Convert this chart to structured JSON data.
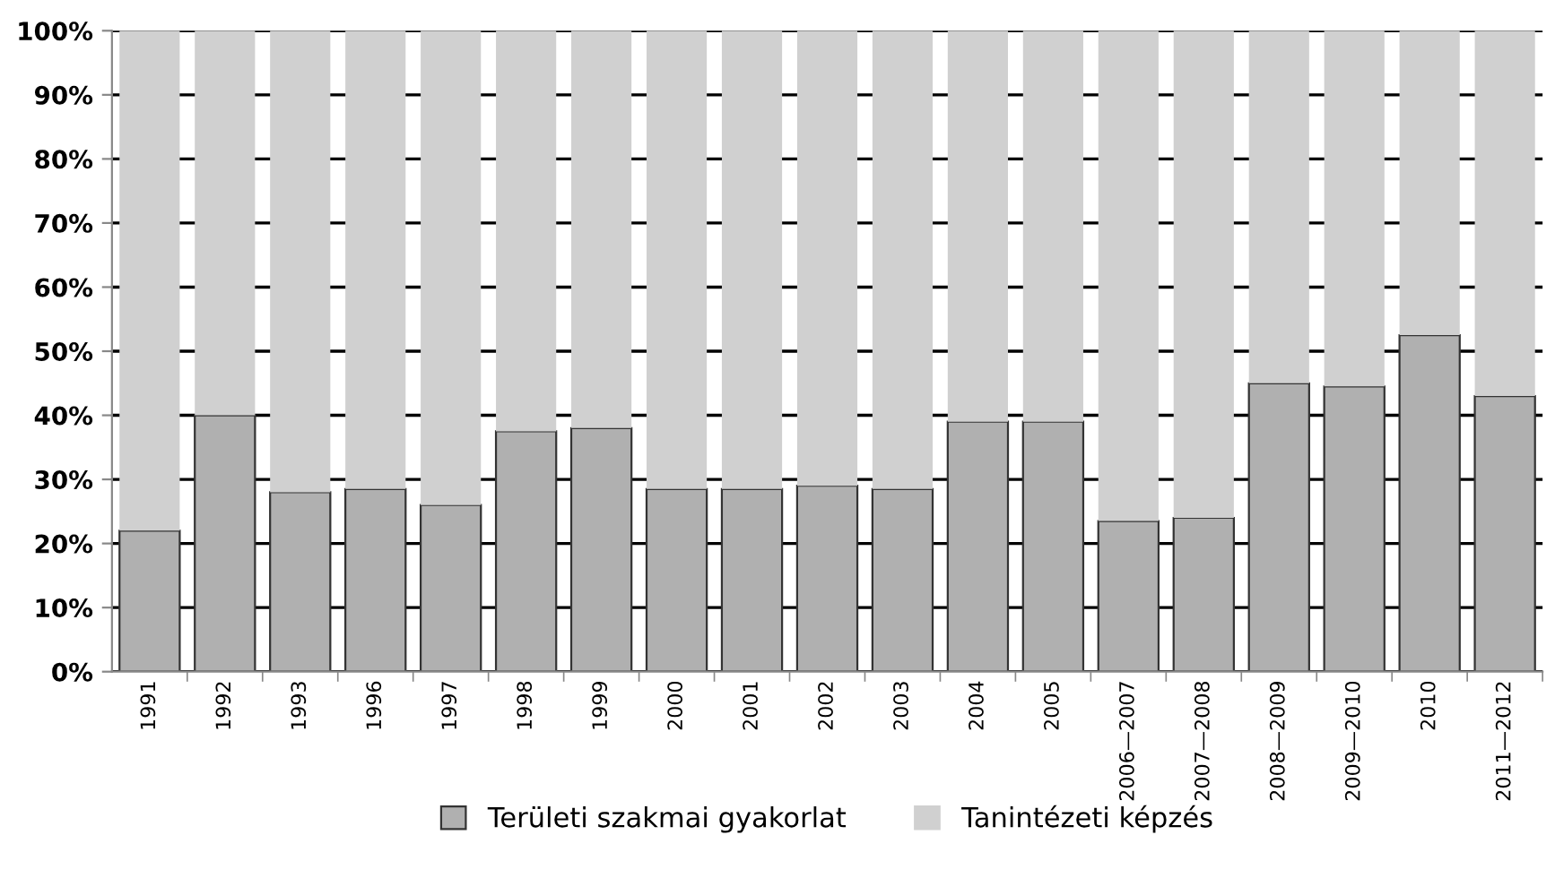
{
  "chart_data": {
    "type": "bar",
    "stacked": true,
    "categories": [
      "1991",
      "1992",
      "1993",
      "1996",
      "1997",
      "1998",
      "1999",
      "2000",
      "2001",
      "2002",
      "2003",
      "2004",
      "2005",
      "2006—2007",
      "2007—2008",
      "2008—2009",
      "2009—2010",
      "2010",
      "2011—2012"
    ],
    "series": [
      {
        "name": "Területi szakmai gyakorlat",
        "color": "#b0b0b0",
        "values": [
          22,
          40,
          28,
          28.5,
          26,
          37.5,
          38,
          28.5,
          28.5,
          29,
          28.5,
          39,
          39,
          23.5,
          24,
          45,
          44.5,
          52.5,
          43
        ]
      },
      {
        "name": "Tanintézeti képzés",
        "color": "#d0d0d0",
        "values": [
          78,
          60,
          72,
          71.5,
          74,
          62.5,
          62,
          71.5,
          71.5,
          71,
          71.5,
          61,
          61,
          76.5,
          76,
          55,
          55.5,
          47.5,
          57
        ]
      }
    ],
    "ylim": [
      0,
      100
    ],
    "yticks": [
      {
        "value": 0,
        "label": "0%"
      },
      {
        "value": 10,
        "label": "10%"
      },
      {
        "value": 20,
        "label": "20%"
      },
      {
        "value": 30,
        "label": "30%"
      },
      {
        "value": 40,
        "label": "40%"
      },
      {
        "value": 50,
        "label": "50%"
      },
      {
        "value": 60,
        "label": "60%"
      },
      {
        "value": 70,
        "label": "70%"
      },
      {
        "value": 80,
        "label": "80%"
      },
      {
        "value": 90,
        "label": "90%"
      },
      {
        "value": 100,
        "label": "100%"
      }
    ],
    "grid": "y",
    "legend": "bottom"
  }
}
